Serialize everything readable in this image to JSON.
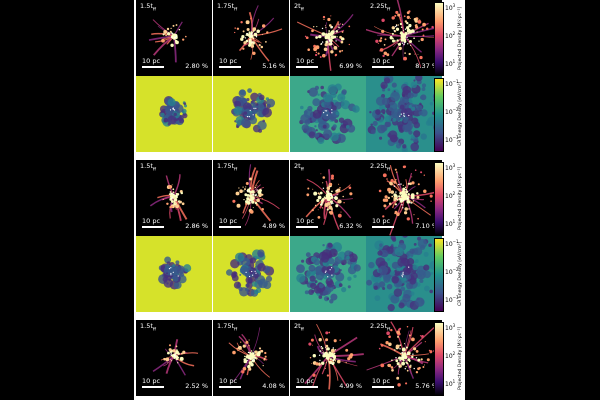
{
  "figure": {
    "groups": [
      {
        "density_row": [
          {
            "time": "1.5t",
            "time_sub": "ff",
            "scale": "10 pc",
            "percent": "2.80 %"
          },
          {
            "time": "1.75t",
            "time_sub": "ff",
            "scale": "10 pc",
            "percent": "5.16 %"
          },
          {
            "time": "2t",
            "time_sub": "ff",
            "scale": "10 pc",
            "percent": "6.99 %"
          },
          {
            "time": "2.25t",
            "time_sub": "ff",
            "scale": "10 pc",
            "percent": "8.37 %"
          }
        ],
        "has_cr_row": true
      },
      {
        "density_row": [
          {
            "time": "1.5t",
            "time_sub": "ff",
            "scale": "10 pc",
            "percent": "2.86 %"
          },
          {
            "time": "1.75t",
            "time_sub": "ff",
            "scale": "10 pc",
            "percent": "4.89 %"
          },
          {
            "time": "2t",
            "time_sub": "ff",
            "scale": "10 pc",
            "percent": "6.32 %"
          },
          {
            "time": "2.25t",
            "time_sub": "ff",
            "scale": "10 pc",
            "percent": "7.10 %"
          }
        ],
        "has_cr_row": true
      },
      {
        "density_row": [
          {
            "time": "1.5t",
            "time_sub": "ff",
            "scale": "10 pc",
            "percent": "2.52 %"
          },
          {
            "time": "1.75t",
            "time_sub": "ff",
            "scale": "10 pc",
            "percent": "4.08 %"
          },
          {
            "time": "2t",
            "time_sub": "ff",
            "scale": "10 pc",
            "percent": "4.99 %"
          },
          {
            "time": "2.25t",
            "time_sub": "ff",
            "scale": "10 pc",
            "percent": "5.76 %"
          }
        ],
        "has_cr_row": false
      }
    ],
    "density_colorbar": {
      "label": "Projected Density [M☉pc⁻²]",
      "ticks": [
        {
          "base": "10",
          "exp": "3"
        },
        {
          "base": "10",
          "exp": "2"
        },
        {
          "base": "10",
          "exp": "1"
        }
      ],
      "colors": [
        "#000004",
        "#3b0f70",
        "#8c2981",
        "#de4968",
        "#fe9f6d",
        "#fcfdbf"
      ]
    },
    "cr_colorbar": {
      "label": "CR Energy Density [eV/cm³]",
      "ticks": [
        {
          "base": "10",
          "exp": "−1"
        },
        {
          "base": "10",
          "exp": "−2"
        },
        {
          "base": "10",
          "exp": "−3"
        }
      ],
      "colors": [
        "#440154",
        "#3b528b",
        "#21918c",
        "#5ec962",
        "#fde725"
      ]
    }
  }
}
